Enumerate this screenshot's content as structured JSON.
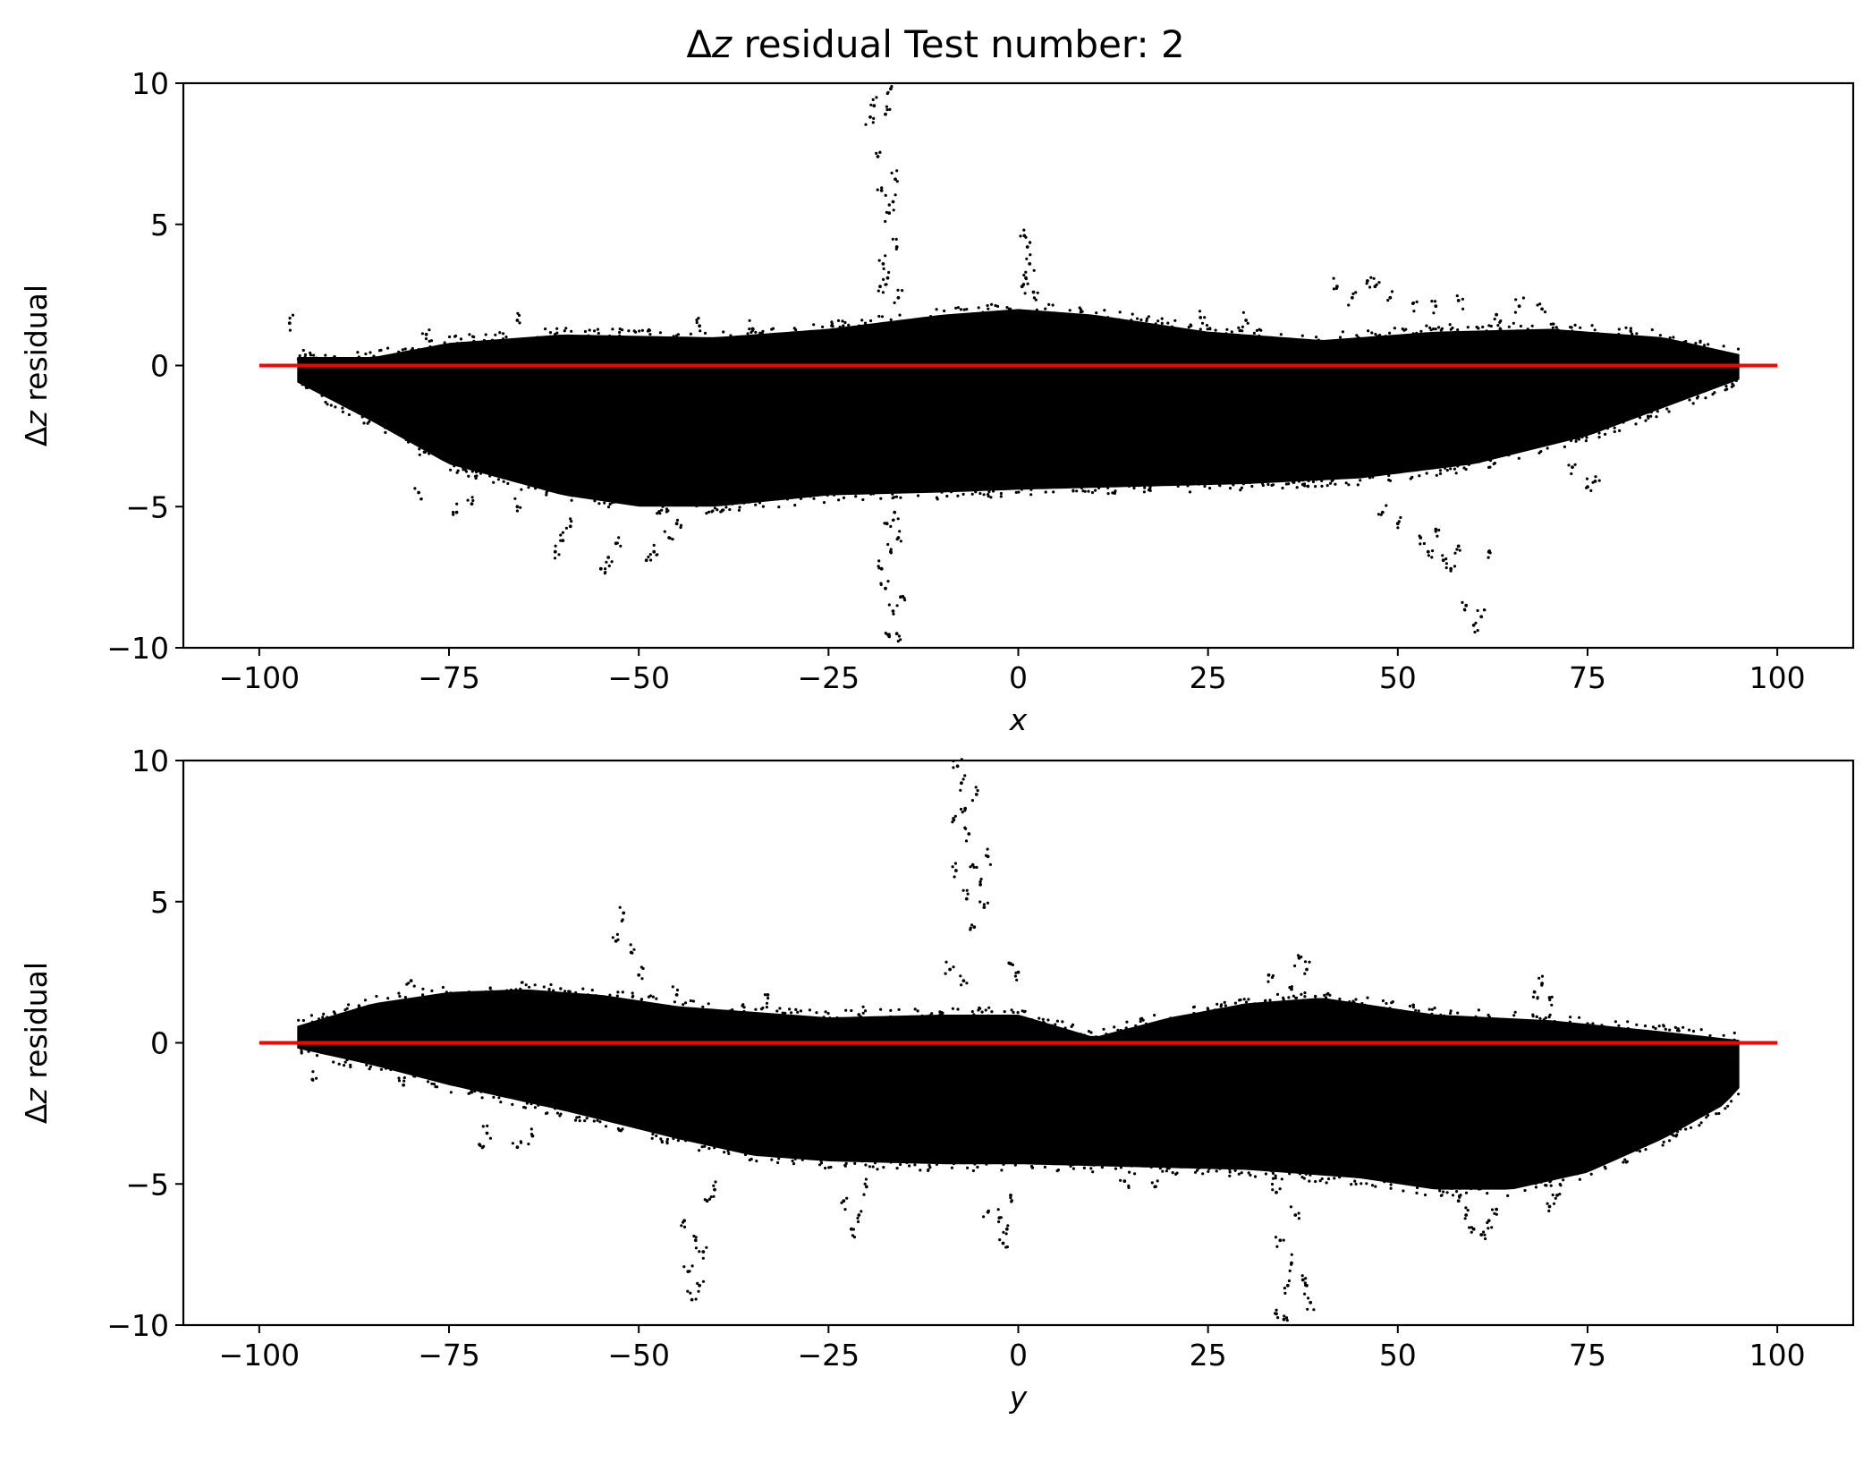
{
  "figure": {
    "title_prefix": "Δ",
    "title_var": "z",
    "title_rest": " residual Test number: 2"
  },
  "chart_data": [
    {
      "type": "scatter",
      "xlabel": "x",
      "ylabel_prefix": "Δ",
      "ylabel_var": "z",
      "ylabel_rest": " residual",
      "xlim": [
        -110,
        110
      ],
      "ylim": [
        -10,
        10
      ],
      "xticks": [
        -100,
        -75,
        -50,
        -25,
        0,
        25,
        50,
        75,
        100
      ],
      "xtick_labels": [
        "−100",
        "−75",
        "−50",
        "−25",
        "0",
        "25",
        "50",
        "75",
        "100"
      ],
      "yticks": [
        -10,
        -5,
        0,
        5,
        10
      ],
      "ytick_labels": [
        "−10",
        "−5",
        "0",
        "5",
        "10"
      ],
      "grid": false,
      "marker_color": "#000000",
      "reference_line": {
        "x": [
          -100,
          100
        ],
        "y": [
          0,
          0
        ],
        "color": "#ff0000"
      },
      "band": {
        "x_range": [
          -95,
          95
        ],
        "upper": [
          [
            -95,
            0.3
          ],
          [
            -85,
            0.3
          ],
          [
            -75,
            0.8
          ],
          [
            -60,
            1.1
          ],
          [
            -40,
            1.0
          ],
          [
            -25,
            1.3
          ],
          [
            -10,
            1.8
          ],
          [
            0,
            2.0
          ],
          [
            10,
            1.8
          ],
          [
            25,
            1.2
          ],
          [
            40,
            0.9
          ],
          [
            55,
            1.2
          ],
          [
            70,
            1.3
          ],
          [
            85,
            1.0
          ],
          [
            95,
            0.4
          ]
        ],
        "lower": [
          [
            -95,
            -0.6
          ],
          [
            -85,
            -2.0
          ],
          [
            -75,
            -3.5
          ],
          [
            -60,
            -4.6
          ],
          [
            -50,
            -5.0
          ],
          [
            -40,
            -5.0
          ],
          [
            -25,
            -4.6
          ],
          [
            -10,
            -4.5
          ],
          [
            0,
            -4.4
          ],
          [
            15,
            -4.3
          ],
          [
            30,
            -4.2
          ],
          [
            45,
            -4.0
          ],
          [
            60,
            -3.5
          ],
          [
            75,
            -2.5
          ],
          [
            85,
            -1.5
          ],
          [
            95,
            -0.5
          ]
        ]
      },
      "outliers": [
        [
          -19,
          9.2
        ],
        [
          -18.5,
          7.4
        ],
        [
          -18,
          6.2
        ],
        [
          -17.5,
          8.9
        ],
        [
          -17,
          5.4
        ],
        [
          -16.8,
          9.8
        ],
        [
          -16.5,
          5.8
        ],
        [
          -16,
          4.2
        ],
        [
          -19.5,
          8.8
        ],
        [
          -17.8,
          3.6
        ],
        [
          -18.2,
          2.8
        ],
        [
          -17.2,
          3.1
        ],
        [
          -16.2,
          6.6
        ],
        [
          -15.8,
          2.4
        ],
        [
          -17,
          -9.6
        ],
        [
          -16.5,
          -8.7
        ],
        [
          -16,
          -9.5
        ],
        [
          -17.5,
          -7.9
        ],
        [
          -15.5,
          -8.2
        ],
        [
          -18,
          -7.2
        ],
        [
          -16.8,
          -6.6
        ],
        [
          -15.8,
          -6.1
        ],
        [
          -17.3,
          -5.6
        ],
        [
          -16.3,
          -5.2
        ],
        [
          0.8,
          4.6
        ],
        [
          1.2,
          4.2
        ],
        [
          1.5,
          3.6
        ],
        [
          1,
          3.1
        ],
        [
          2,
          2.6
        ],
        [
          0.5,
          2.8
        ],
        [
          42,
          2.8
        ],
        [
          44,
          2.4
        ],
        [
          46,
          3.0
        ],
        [
          47,
          2.8
        ],
        [
          49,
          2.4
        ],
        [
          52,
          2.2
        ],
        [
          55,
          2.1
        ],
        [
          58,
          2.3
        ],
        [
          63,
          1.8
        ],
        [
          66,
          2.1
        ],
        [
          69,
          2.0
        ],
        [
          30,
          1.6
        ],
        [
          24,
          1.7
        ],
        [
          -96,
          1.5
        ],
        [
          -78,
          1.1
        ],
        [
          -66,
          1.6
        ],
        [
          -42,
          1.4
        ],
        [
          -35,
          1.3
        ],
        [
          -74,
          -5.2
        ],
        [
          -72,
          -4.9
        ],
        [
          -66,
          -5.0
        ],
        [
          -61,
          -6.6
        ],
        [
          -60,
          -6.2
        ],
        [
          -59,
          -5.7
        ],
        [
          -55,
          -7.2
        ],
        [
          -54,
          -6.8
        ],
        [
          -53,
          -6.3
        ],
        [
          -49,
          -6.9
        ],
        [
          -48,
          -6.6
        ],
        [
          -46,
          -6.1
        ],
        [
          -45,
          -5.6
        ],
        [
          -79,
          -4.5
        ],
        [
          53,
          -6.1
        ],
        [
          54,
          -6.6
        ],
        [
          56,
          -6.9
        ],
        [
          58,
          -6.4
        ],
        [
          59,
          -8.5
        ],
        [
          60,
          -9.2
        ],
        [
          61,
          -8.9
        ],
        [
          62,
          -6.6
        ],
        [
          57,
          -7.2
        ],
        [
          55,
          -5.8
        ],
        [
          50,
          -5.6
        ],
        [
          48,
          -5.2
        ],
        [
          73,
          -3.6
        ],
        [
          75,
          -4.3
        ],
        [
          76,
          -4.1
        ]
      ]
    },
    {
      "type": "scatter",
      "xlabel": "y",
      "ylabel_prefix": "Δ",
      "ylabel_var": "z",
      "ylabel_rest": " residual",
      "xlim": [
        -110,
        110
      ],
      "ylim": [
        -10,
        10
      ],
      "xticks": [
        -100,
        -75,
        -50,
        -25,
        0,
        25,
        50,
        75,
        100
      ],
      "xtick_labels": [
        "−100",
        "−75",
        "−50",
        "−25",
        "0",
        "25",
        "50",
        "75",
        "100"
      ],
      "yticks": [
        -10,
        -5,
        0,
        5,
        10
      ],
      "ytick_labels": [
        "−10",
        "−5",
        "0",
        "5",
        "10"
      ],
      "grid": false,
      "marker_color": "#000000",
      "reference_line": {
        "x": [
          -100,
          100
        ],
        "y": [
          0,
          0
        ],
        "color": "#ff0000"
      },
      "band": {
        "x_range": [
          -95,
          95
        ],
        "upper": [
          [
            -95,
            0.6
          ],
          [
            -85,
            1.4
          ],
          [
            -75,
            1.8
          ],
          [
            -65,
            1.9
          ],
          [
            -55,
            1.7
          ],
          [
            -45,
            1.3
          ],
          [
            -35,
            1.1
          ],
          [
            -25,
            0.9
          ],
          [
            -10,
            1.0
          ],
          [
            0,
            1.0
          ],
          [
            10,
            0.2
          ],
          [
            20,
            0.9
          ],
          [
            30,
            1.4
          ],
          [
            40,
            1.6
          ],
          [
            55,
            1.0
          ],
          [
            70,
            0.8
          ],
          [
            85,
            0.4
          ],
          [
            95,
            0.1
          ]
        ],
        "lower": [
          [
            -95,
            -0.2
          ],
          [
            -85,
            -0.8
          ],
          [
            -75,
            -1.5
          ],
          [
            -60,
            -2.4
          ],
          [
            -45,
            -3.4
          ],
          [
            -35,
            -4.0
          ],
          [
            -25,
            -4.2
          ],
          [
            -10,
            -4.3
          ],
          [
            0,
            -4.3
          ],
          [
            15,
            -4.4
          ],
          [
            30,
            -4.5
          ],
          [
            45,
            -4.8
          ],
          [
            55,
            -5.2
          ],
          [
            65,
            -5.2
          ],
          [
            75,
            -4.6
          ],
          [
            85,
            -3.4
          ],
          [
            93,
            -2.2
          ],
          [
            95,
            -1.6
          ]
        ]
      },
      "outliers": [
        [
          -8,
          9.8
        ],
        [
          -7.5,
          9.2
        ],
        [
          -7,
          8.3
        ],
        [
          -6.5,
          7.4
        ],
        [
          -6,
          6.3
        ],
        [
          -5.5,
          8.8
        ],
        [
          -5,
          5.6
        ],
        [
          -4.5,
          4.8
        ],
        [
          -4,
          6.6
        ],
        [
          -8.5,
          7.9
        ],
        [
          -8.2,
          6.1
        ],
        [
          -6.8,
          5.1
        ],
        [
          -5.8,
          4.1
        ],
        [
          -9,
          2.6
        ],
        [
          -7.2,
          2.2
        ],
        [
          -53,
          3.6
        ],
        [
          -52,
          4.6
        ],
        [
          -51,
          3.2
        ],
        [
          -50,
          2.4
        ],
        [
          -80,
          2.2
        ],
        [
          -45,
          1.7
        ],
        [
          -33,
          1.7
        ],
        [
          -21,
          1.0
        ],
        [
          -1,
          2.8
        ],
        [
          0,
          2.5
        ],
        [
          33,
          2.4
        ],
        [
          36,
          1.9
        ],
        [
          37,
          3.0
        ],
        [
          38,
          2.6
        ],
        [
          68,
          1.8
        ],
        [
          69,
          2.1
        ],
        [
          70,
          1.6
        ],
        [
          -93,
          -1.3
        ],
        [
          -81,
          -1.5
        ],
        [
          -71,
          -3.6
        ],
        [
          -70,
          -3.2
        ],
        [
          -66,
          -3.7
        ],
        [
          -64,
          -3.3
        ],
        [
          -43,
          -9.1
        ],
        [
          -42,
          -8.6
        ],
        [
          -43.5,
          -8.1
        ],
        [
          -41.5,
          -7.4
        ],
        [
          -42.5,
          -7.0
        ],
        [
          -44,
          -6.3
        ],
        [
          -41,
          -5.6
        ],
        [
          -40,
          -5.2
        ],
        [
          -22,
          -6.6
        ],
        [
          -21,
          -6.1
        ],
        [
          -23,
          -5.6
        ],
        [
          -20,
          -5.1
        ],
        [
          -4,
          -6.0
        ],
        [
          -2,
          -7.1
        ],
        [
          -1.5,
          -6.6
        ],
        [
          -2.5,
          -6.2
        ],
        [
          -1,
          -5.4
        ],
        [
          18,
          -5.1
        ],
        [
          14,
          -4.9
        ],
        [
          34,
          -9.6
        ],
        [
          35,
          -9.8
        ],
        [
          35.5,
          -8.6
        ],
        [
          36,
          -7.8
        ],
        [
          34.5,
          -7.0
        ],
        [
          36.5,
          -6.1
        ],
        [
          34,
          -5.3
        ],
        [
          38,
          -8.6
        ],
        [
          38.5,
          -9.2
        ],
        [
          37.5,
          -8.4
        ],
        [
          59,
          -6.1
        ],
        [
          60,
          -6.6
        ],
        [
          61,
          -6.8
        ],
        [
          62,
          -6.3
        ],
        [
          63,
          -5.9
        ],
        [
          70,
          -5.8
        ],
        [
          71,
          -5.4
        ],
        [
          58,
          -5.6
        ]
      ]
    }
  ]
}
